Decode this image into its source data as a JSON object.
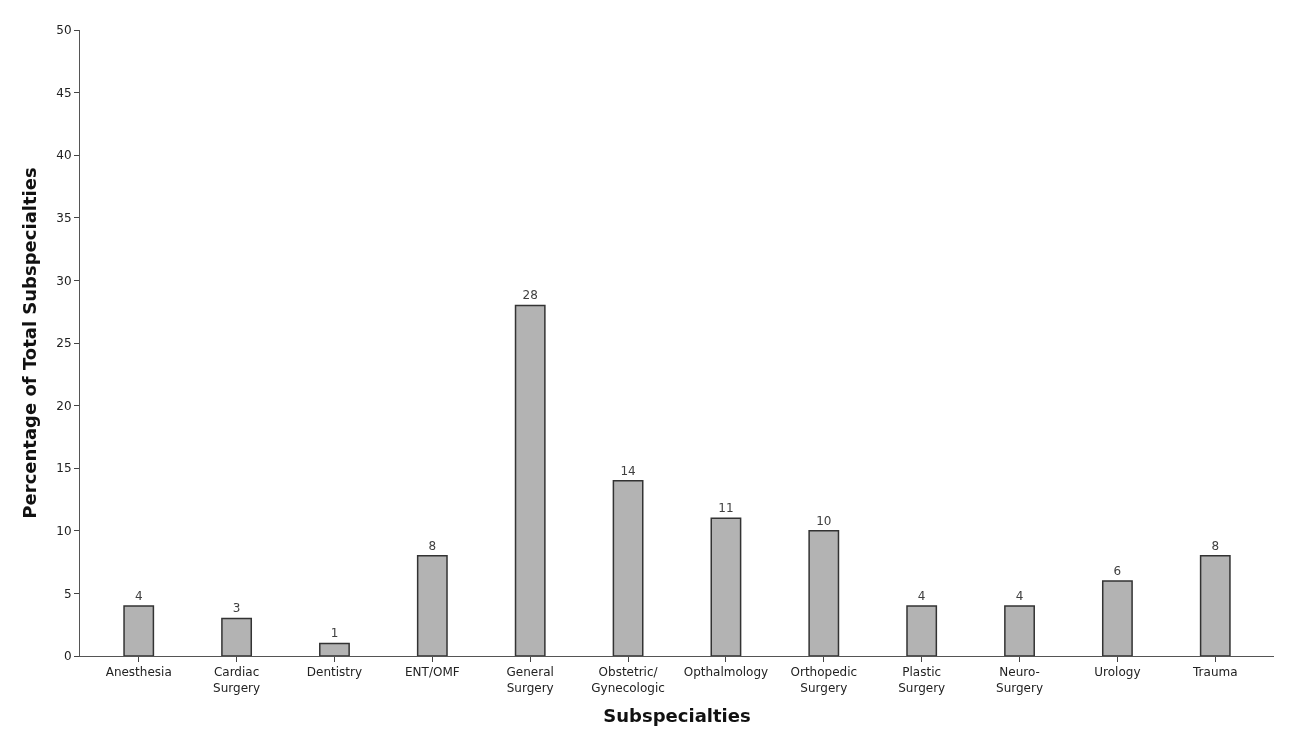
{
  "chart_data": {
    "type": "bar",
    "xlabel": "Subspecialties",
    "ylabel": "Percentage of Total Subspecialties",
    "categories": [
      "Anesthesia",
      "Cardiac Surgery",
      "Dentistry",
      "ENT/OMF",
      "General Surgery",
      "Obstetric/Gynecologic",
      "Opthalmology",
      "Orthopedic Surgery",
      "Plastic Surgery",
      "Neuro-Surgery",
      "Urology",
      "Trauma"
    ],
    "values": [
      4,
      3,
      1,
      8,
      28,
      14,
      11,
      10,
      4,
      4,
      6,
      8
    ],
    "color": "#b3b3b3",
    "ylim": [
      0,
      50
    ],
    "yticks": [
      0,
      5,
      10,
      15,
      20,
      25,
      30,
      35,
      40,
      45,
      50
    ],
    "data_labels": true
  }
}
